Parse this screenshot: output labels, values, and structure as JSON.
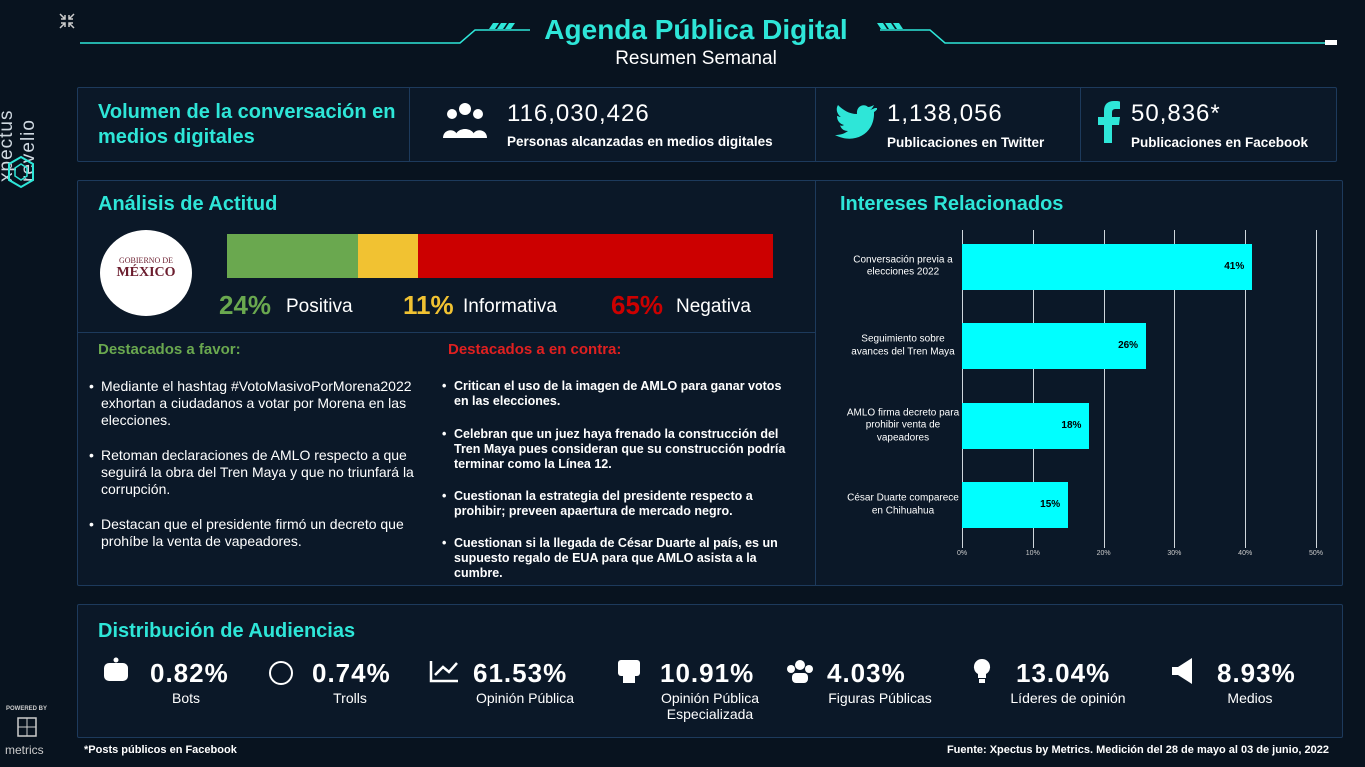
{
  "sidebar": {
    "brand": "xpectus revelio",
    "powered_by": "POWERED BY",
    "metrics": "metrics"
  },
  "header": {
    "title": "Agenda Pública Digital",
    "subtitle": "Resumen Semanal"
  },
  "volume": {
    "title": "Volumen de la conversación en medios digitales",
    "stats": [
      {
        "value": "116,030,426",
        "label": "Personas alcanzadas en medios digitales"
      },
      {
        "value": "1,138,056",
        "label": "Publicaciones en Twitter"
      },
      {
        "value": "50,836*",
        "label": "Publicaciones en Facebook"
      }
    ]
  },
  "attitude": {
    "title": "Análisis de Actitud",
    "logo": [
      "GOBIERNO DE",
      "MÉXICO"
    ],
    "segments": [
      {
        "name": "Positiva",
        "value": 24,
        "label": "24%",
        "color": "#6aa84f"
      },
      {
        "name": "Informativa",
        "value": 11,
        "label": "11%",
        "color": "#f1c232"
      },
      {
        "name": "Negativa",
        "value": 65,
        "label": "65%",
        "color": "#cc0000"
      }
    ]
  },
  "favor": {
    "title": "Destacados a favor:",
    "items": [
      "Mediante el hashtag #VotoMasivoPorMorena2022 exhortan a ciudadanos a votar por Morena en las elecciones.",
      "Retoman declaraciones de AMLO respecto a que seguirá la obra del Tren Maya y que no triunfará la corrupción.",
      "Destacan que el presidente firmó un decreto que prohíbe la venta de vapeadores."
    ]
  },
  "contra": {
    "title": "Destacados a en contra:",
    "items": [
      "Critican el uso de la imagen de AMLO para ganar votos en las elecciones.",
      "Celebran que un juez haya frenado la construcción del Tren Maya pues consideran que su construcción podría terminar como la Línea 12.",
      "Cuestionan la estrategia del presidente respecto a prohibir; preveen apaertura de mercado negro.",
      "Cuestionan si la llegada de César Duarte al país, es un supuesto regalo de EUA para que AMLO asista a la cumbre."
    ]
  },
  "chart_data": {
    "type": "bar",
    "orientation": "horizontal",
    "title": "Intereses Relacionados",
    "categories": [
      "Conversación previa a elecciones 2022",
      "Seguimiento sobre avances del Tren Maya",
      "AMLO firma decreto para prohibir venta de vapeadores",
      "César Duarte comparece en Chihuahua"
    ],
    "values": [
      41,
      26,
      18,
      15
    ],
    "value_labels": [
      "41%",
      "26%",
      "18%",
      "15%"
    ],
    "color": "#00ffff",
    "xlim": [
      0,
      50
    ],
    "xticks": [
      {
        "value": 0,
        "label": "0%"
      },
      {
        "value": 10,
        "label": "10%"
      },
      {
        "value": 20,
        "label": "20%"
      },
      {
        "value": 30,
        "label": "30%"
      },
      {
        "value": 40,
        "label": "40%"
      },
      {
        "value": 50,
        "label": "50%"
      }
    ],
    "grid": true
  },
  "audiences": {
    "title": "Distribución de Audiencias",
    "items": [
      {
        "value": "0.82%",
        "label": "Bots"
      },
      {
        "value": "0.74%",
        "label": "Trolls"
      },
      {
        "value": "61.53%",
        "label": "Opinión Pública"
      },
      {
        "value": "10.91%",
        "label": "Opinión Pública Especializada"
      },
      {
        "value": "4.03%",
        "label": "Figuras Públicas"
      },
      {
        "value": "13.04%",
        "label": "Líderes de opinión"
      },
      {
        "value": "8.93%",
        "label": "Medios"
      }
    ]
  },
  "footer": {
    "note": "*Posts públicos en Facebook",
    "source": "Fuente: Xpectus by Metrics. Medición del 28 de mayo al 03 de junio, 2022"
  }
}
